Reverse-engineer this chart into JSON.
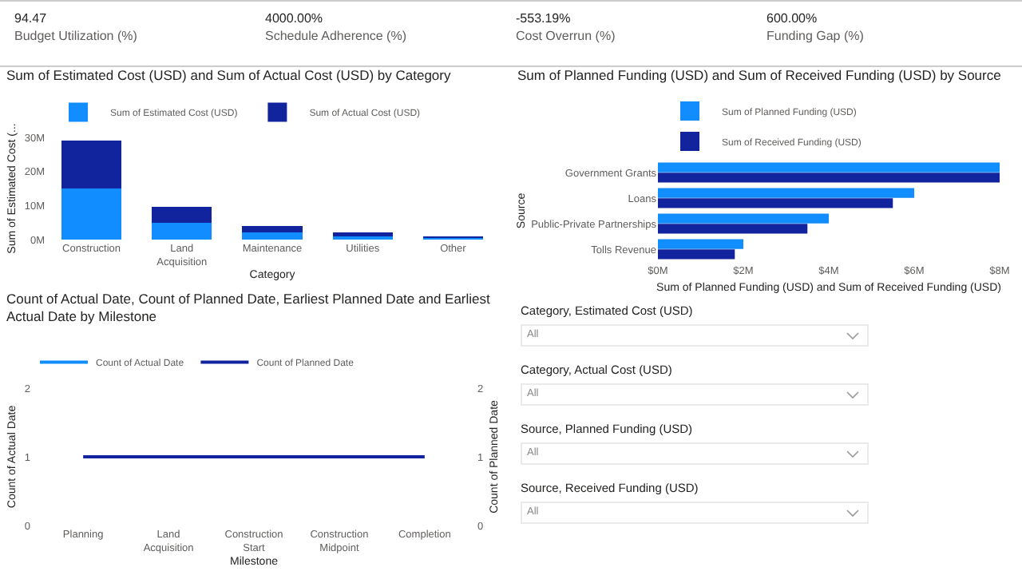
{
  "chart_data": [
    {
      "type": "other",
      "annotations": [
        "94.47",
        "Budget Utilization (%)",
        "4000.00%",
        "Schedule Adherence (%)",
        "-553.19%",
        "Cost Overrun (%)",
        "600.00%",
        "Funding Gap (%)"
      ]
    },
    {
      "type": "bar",
      "stacked": true,
      "title": "Sum of Estimated Cost (USD) and Sum of Actual Cost (USD) by Category",
      "xlabel": "Category",
      "ylabel": "Sum of Estimated Cost (...",
      "categories": [
        "Construction",
        "Land Acquisition",
        "Maintenance",
        "Utilities",
        "Other"
      ],
      "series": [
        {
          "name": "Sum of Estimated Cost (USD)",
          "color": "#118dff",
          "values": [
            15000000,
            5000000,
            2000000,
            1000000,
            500000
          ]
        },
        {
          "name": "Sum of Actual Cost (USD)",
          "color": "#12239e",
          "values": [
            14000000,
            4500000,
            2000000,
            1000000,
            400000
          ]
        }
      ],
      "ylim": [
        0,
        30000000
      ],
      "yticks": [
        {
          "value": 0,
          "label": "0M"
        },
        {
          "value": 10000000,
          "label": "10M"
        },
        {
          "value": 20000000,
          "label": "20M"
        },
        {
          "value": 30000000,
          "label": "30M"
        }
      ],
      "grid": false,
      "legend": "top left"
    },
    {
      "type": "bar",
      "orientation": "horizontal",
      "title": "Sum of Planned Funding (USD) and Sum of Received Funding (USD) by Source",
      "xlabel": "Sum of Planned Funding (USD) and Sum of Received Funding (USD)",
      "ylabel": "Source",
      "categories": [
        "Government Grants",
        "Loans",
        "Public-Private Partnerships",
        "Tolls Revenue"
      ],
      "series": [
        {
          "name": "Sum of Planned Funding (USD)",
          "color": "#118dff",
          "values": [
            8000000,
            6000000,
            4000000,
            2000000
          ]
        },
        {
          "name": "Sum of Received Funding (USD)",
          "color": "#12239e",
          "values": [
            8000000,
            5500000,
            3500000,
            1800000
          ]
        }
      ],
      "xlim": [
        0,
        8000000
      ],
      "xticks": [
        {
          "value": 0,
          "label": "$0M"
        },
        {
          "value": 2000000,
          "label": "$2M"
        },
        {
          "value": 4000000,
          "label": "$4M"
        },
        {
          "value": 6000000,
          "label": "$6M"
        },
        {
          "value": 8000000,
          "label": "$8M"
        }
      ],
      "grid": false,
      "legend": "top left"
    },
    {
      "type": "line",
      "title": "Count of Actual Date, Count of Planned Date, Earliest Planned Date and Earliest Actual Date by Milestone",
      "xlabel": "Milestone",
      "ylabel": "Count of Actual Date",
      "y2label": "Count of Planned Date",
      "categories": [
        "Planning",
        "Land Acquisition",
        "Construction Start",
        "Construction Midpoint",
        "Completion"
      ],
      "series": [
        {
          "name": "Count of Actual Date",
          "color": "#118dff",
          "values": [
            null,
            null,
            null,
            null,
            null
          ]
        },
        {
          "name": "Count of Planned Date",
          "color": "#12239e",
          "axis": "y2",
          "values": [
            1,
            1,
            1,
            1,
            1
          ]
        }
      ],
      "ylim": [
        0,
        2
      ],
      "yticks": [
        0,
        1,
        2
      ],
      "y2lim": [
        0,
        2
      ],
      "y2ticks": [
        0,
        1,
        2
      ],
      "grid": false,
      "legend": "top left",
      "marker": "none",
      "line_style": "solid"
    },
    {
      "type": "other",
      "annotations": [
        "Category, Estimated Cost (USD)",
        "All",
        "Category, Actual Cost (USD)",
        "All",
        "Source, Planned Funding (USD)",
        "All",
        "Source, Received Funding (USD)",
        "All"
      ]
    }
  ]
}
